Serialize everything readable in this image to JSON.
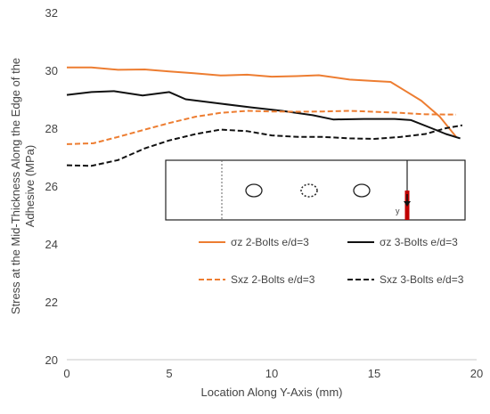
{
  "chart_data": {
    "type": "line",
    "title": "",
    "xlabel": "Location Along Y-Axis (mm)",
    "ylabel_lines": [
      "Stress at the Mid-Thickness Along the Edge of the",
      "Adhesive (MPa)"
    ],
    "xlim": [
      0,
      20
    ],
    "ylim": [
      20,
      32
    ],
    "xticks": [
      0,
      5,
      10,
      15,
      20
    ],
    "yticks": [
      20,
      22,
      24,
      26,
      28,
      30,
      32
    ],
    "grid": false,
    "legend_placement": "lower-right",
    "series": [
      {
        "name": "σz 2-Bolts e/d=3",
        "color": "#ED7D31",
        "dash": "solid",
        "points": [
          [
            0,
            30.1
          ],
          [
            1.2,
            30.1
          ],
          [
            2.5,
            30.02
          ],
          [
            3.8,
            30.03
          ],
          [
            5,
            29.96
          ],
          [
            6.2,
            29.9
          ],
          [
            7.5,
            29.82
          ],
          [
            8.8,
            29.85
          ],
          [
            10,
            29.78
          ],
          [
            11.2,
            29.8
          ],
          [
            12.3,
            29.83
          ],
          [
            13.8,
            29.68
          ],
          [
            15,
            29.63
          ],
          [
            15.8,
            29.6
          ],
          [
            16.5,
            29.3
          ],
          [
            17.3,
            28.95
          ],
          [
            18.2,
            28.4
          ],
          [
            19,
            27.7
          ]
        ]
      },
      {
        "name": "σz 3-Bolts e/d=3",
        "color": "#111111",
        "dash": "solid",
        "points": [
          [
            0,
            29.15
          ],
          [
            1.2,
            29.25
          ],
          [
            2.3,
            29.28
          ],
          [
            3.7,
            29.13
          ],
          [
            5,
            29.25
          ],
          [
            5.8,
            29.0
          ],
          [
            7.5,
            28.85
          ],
          [
            9,
            28.72
          ],
          [
            10.5,
            28.6
          ],
          [
            12,
            28.45
          ],
          [
            13,
            28.3
          ],
          [
            14.5,
            28.32
          ],
          [
            16,
            28.32
          ],
          [
            16.8,
            28.28
          ],
          [
            17.8,
            28.0
          ],
          [
            18.5,
            27.8
          ],
          [
            19.2,
            27.65
          ]
        ]
      },
      {
        "name": "Sxz 2-Bolts e/d=3",
        "color": "#ED7D31",
        "dash": "dashed",
        "points": [
          [
            0,
            27.45
          ],
          [
            1.3,
            27.48
          ],
          [
            2.5,
            27.7
          ],
          [
            3.8,
            27.95
          ],
          [
            5,
            28.18
          ],
          [
            6.3,
            28.4
          ],
          [
            7.5,
            28.53
          ],
          [
            8.8,
            28.6
          ],
          [
            10,
            28.58
          ],
          [
            11.2,
            28.57
          ],
          [
            12.5,
            28.58
          ],
          [
            13.8,
            28.6
          ],
          [
            15,
            28.57
          ],
          [
            16.3,
            28.53
          ],
          [
            17.5,
            28.48
          ],
          [
            19,
            28.47
          ]
        ]
      },
      {
        "name": "Sxz 3-Bolts e/d=3",
        "color": "#111111",
        "dash": "dashed",
        "points": [
          [
            0,
            26.72
          ],
          [
            1.2,
            26.7
          ],
          [
            2.5,
            26.9
          ],
          [
            3.8,
            27.3
          ],
          [
            5,
            27.58
          ],
          [
            6.3,
            27.8
          ],
          [
            7.5,
            27.95
          ],
          [
            8.8,
            27.9
          ],
          [
            10,
            27.75
          ],
          [
            11.3,
            27.7
          ],
          [
            12.5,
            27.7
          ],
          [
            13.8,
            27.65
          ],
          [
            15,
            27.63
          ],
          [
            16.3,
            27.7
          ],
          [
            17.5,
            27.8
          ],
          [
            18.5,
            28.0
          ],
          [
            19.3,
            28.1
          ]
        ]
      }
    ],
    "inset": {
      "y_axis_label": "y",
      "marker_color": "#C00000"
    }
  }
}
